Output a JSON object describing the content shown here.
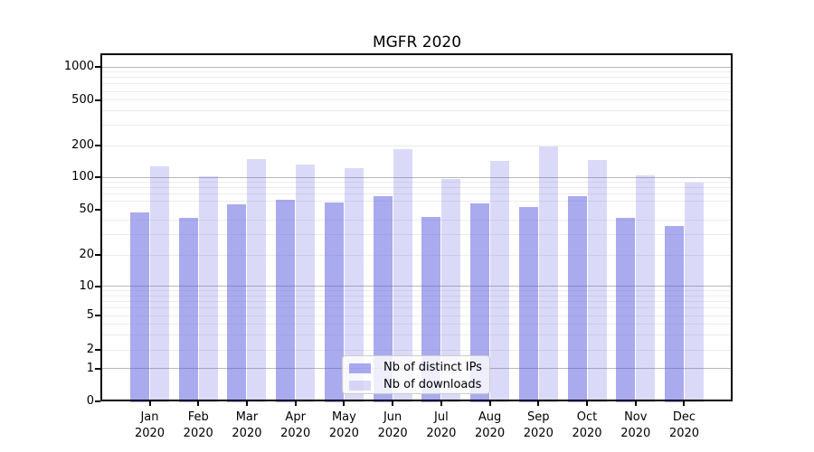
{
  "chart_data": {
    "type": "bar",
    "title": "MGFR 2020",
    "x_months": [
      "Jan",
      "Feb",
      "Mar",
      "Apr",
      "May",
      "Jun",
      "Jul",
      "Aug",
      "Sep",
      "Oct",
      "Nov",
      "Dec"
    ],
    "x_year": "2020",
    "series": [
      {
        "name": "Nb of distinct IPs",
        "fill": "rgba(85,85,224,0.5)",
        "apparent_color": "#aaaaef",
        "values": [
          47,
          42,
          56,
          62,
          58,
          67,
          43,
          57,
          53,
          66,
          42,
          36
        ]
      },
      {
        "name": "Nb of downloads",
        "fill": "rgba(85,85,224,0.22)",
        "apparent_color": "#d9d9f8",
        "values": [
          128,
          101,
          150,
          132,
          122,
          186,
          96,
          143,
          195,
          146,
          105,
          89
        ]
      }
    ],
    "yscale": "symlog",
    "ylim": [
      0,
      1000
    ],
    "y_ticks": [
      0,
      1,
      2,
      5,
      10,
      20,
      50,
      100,
      200,
      500,
      1000
    ],
    "y_major_gridlines": [
      1,
      10,
      100,
      1000
    ],
    "y_minor_gridlines": [
      2,
      3,
      4,
      5,
      6,
      7,
      8,
      9,
      20,
      30,
      40,
      60,
      70,
      80,
      90,
      200,
      300,
      400,
      500,
      600,
      700,
      800,
      900
    ],
    "xlabel": "",
    "ylabel": "",
    "grid": true,
    "legend_position": "lower center",
    "colors": {
      "grid_major": "#b9b9b9",
      "grid_minor": "#ececec",
      "spine": "#000000",
      "background": "#ffffff"
    }
  }
}
